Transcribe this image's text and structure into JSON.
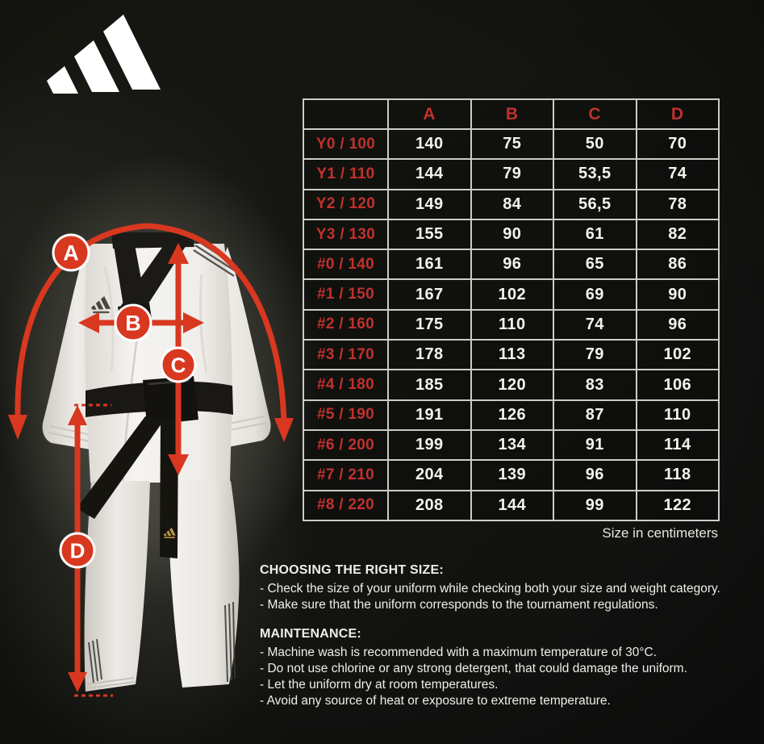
{
  "brand": {
    "logo_icon": "adidas-three-stripes-logo"
  },
  "colors": {
    "background": "#121310",
    "accent_arrow_red": "#d8381f",
    "table_label_red": "#c0312e",
    "table_border": "#cdcbc8",
    "text_white": "#efedea",
    "uniform_white": "#f3f1ee",
    "belt_black": "#191814",
    "belt_logo_gold": "#b99443"
  },
  "measurements": [
    {
      "id": "A"
    },
    {
      "id": "B"
    },
    {
      "id": "C"
    },
    {
      "id": "D"
    }
  ],
  "size_chart": {
    "columns": [
      "A",
      "B",
      "C",
      "D"
    ],
    "rows": [
      {
        "label": "Y0 / 100",
        "values": [
          "140",
          "75",
          "50",
          "70"
        ]
      },
      {
        "label": "Y1 / 110",
        "values": [
          "144",
          "79",
          "53,5",
          "74"
        ]
      },
      {
        "label": "Y2 / 120",
        "values": [
          "149",
          "84",
          "56,5",
          "78"
        ]
      },
      {
        "label": "Y3 / 130",
        "values": [
          "155",
          "90",
          "61",
          "82"
        ]
      },
      {
        "label": "#0 / 140",
        "values": [
          "161",
          "96",
          "65",
          "86"
        ]
      },
      {
        "label": "#1 / 150",
        "values": [
          "167",
          "102",
          "69",
          "90"
        ]
      },
      {
        "label": "#2 / 160",
        "values": [
          "175",
          "110",
          "74",
          "96"
        ]
      },
      {
        "label": "#3 / 170",
        "values": [
          "178",
          "113",
          "79",
          "102"
        ]
      },
      {
        "label": "#4 / 180",
        "values": [
          "185",
          "120",
          "83",
          "106"
        ]
      },
      {
        "label": "#5 / 190",
        "values": [
          "191",
          "126",
          "87",
          "110"
        ]
      },
      {
        "label": "#6 / 200",
        "values": [
          "199",
          "134",
          "91",
          "114"
        ]
      },
      {
        "label": "#7 / 210",
        "values": [
          "204",
          "139",
          "96",
          "118"
        ]
      },
      {
        "label": "#8 / 220",
        "values": [
          "208",
          "144",
          "99",
          "122"
        ]
      }
    ],
    "unit_note": "Size in centimeters"
  },
  "choosing": {
    "title": "CHOOSING THE RIGHT SIZE:",
    "items": [
      "- Check the size of your uniform while checking both your size and weight category.",
      "- Make sure that the uniform corresponds to the tournament regulations."
    ]
  },
  "maintenance": {
    "title": "MAINTENANCE:",
    "items": [
      "- Machine wash is recommended with a maximum temperature of 30°C.",
      "- Do not use chlorine or any strong detergent, that could damage the uniform.",
      "- Let the uniform dry at room temperatures.",
      "- Avoid any source of heat or exposure to extreme temperature."
    ]
  }
}
